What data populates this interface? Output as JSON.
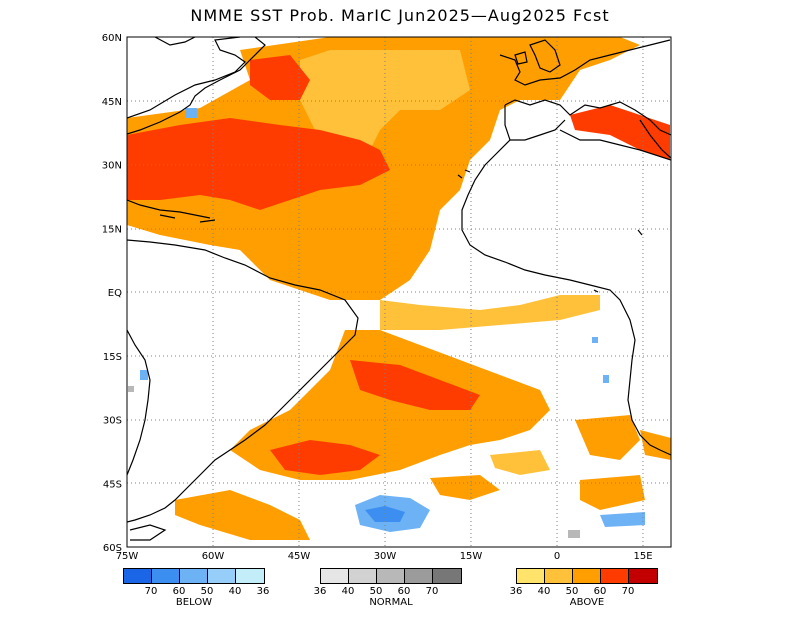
{
  "title": "NMME SST Prob. MarIC   Jun2025—Aug2025 Fcst",
  "axes": {
    "lon_labels": [
      "75W",
      "60W",
      "45W",
      "30W",
      "15W",
      "0",
      "15E"
    ],
    "lat_labels": [
      "60N",
      "45N",
      "30N",
      "15N",
      "EQ",
      "15S",
      "30S",
      "45S",
      "60S"
    ]
  },
  "colors": {
    "land_outline": "#000000",
    "grid": "#808080",
    "above": [
      "#ffe36b",
      "#ffc13a",
      "#ff9e00",
      "#ff3c00",
      "#c20000"
    ],
    "below": [
      "#1a66e6",
      "#3c8ff0",
      "#6db2f5",
      "#97cdf9",
      "#c3eef9"
    ],
    "normal": [
      "#e6e6e6",
      "#d2d2d2",
      "#b8b8b8",
      "#9b9b9b",
      "#777777"
    ]
  },
  "legend": {
    "below": {
      "caption": "BELOW",
      "ticks": [
        "70",
        "60",
        "50",
        "40",
        "36"
      ]
    },
    "normal": {
      "caption": "NORMAL",
      "ticks": [
        "36",
        "40",
        "50",
        "60",
        "70"
      ]
    },
    "above": {
      "caption": "ABOVE",
      "ticks": [
        "36",
        "40",
        "50",
        "60",
        "70"
      ]
    }
  }
}
